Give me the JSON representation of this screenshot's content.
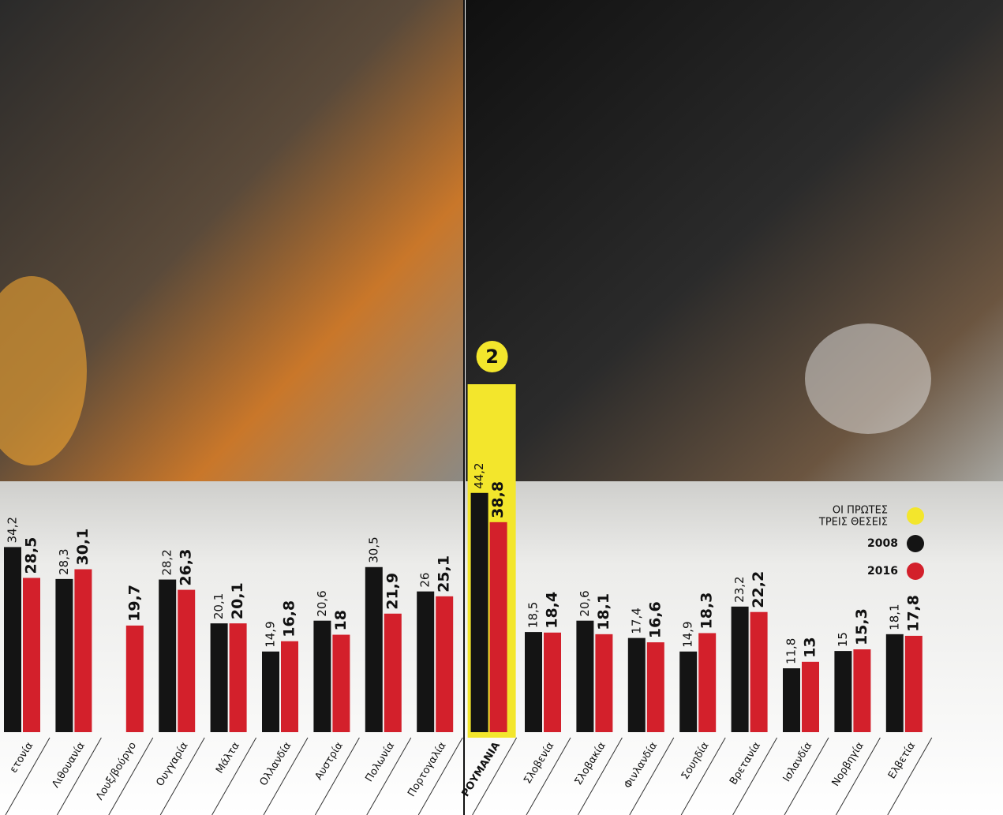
{
  "chart_data": {
    "type": "bar",
    "categories": [
      "ετονία",
      "Λιθουανία",
      "Λουξ/βούργο",
      "Ουγγαρία",
      "Μάλτα",
      "Ολλανδία",
      "Αυστρία",
      "Πολωνία",
      "Πορτογαλία",
      "ΡΟΥΜΑΝΙΑ",
      "Σλοβενία",
      "Σλοβακία",
      "Φινλανδία",
      "Σουηδία",
      "Βρετανία",
      "Ισλανδία",
      "Νορβηγία",
      "Ελβετία"
    ],
    "series": [
      {
        "name": "2008",
        "color": "#141414",
        "values": [
          34.2,
          28.3,
          null,
          28.2,
          20.1,
          14.9,
          20.6,
          30.5,
          26,
          44.2,
          18.5,
          20.6,
          17.4,
          14.9,
          23.2,
          11.8,
          15,
          18.1
        ],
        "value_labels": [
          "34,2",
          "28,3",
          null,
          "28,2",
          "20,1",
          "14,9",
          "20,6",
          "30,5",
          "26",
          "44,2",
          "18,5",
          "20,6",
          "17,4",
          "14,9",
          "23,2",
          "11,8",
          "15",
          "18,1"
        ]
      },
      {
        "name": "2016",
        "color": "#d3202b",
        "values": [
          28.5,
          30.1,
          19.7,
          26.3,
          20.1,
          16.8,
          18,
          21.9,
          25.1,
          38.8,
          18.4,
          18.1,
          16.6,
          18.3,
          22.2,
          13,
          15.3,
          17.8
        ],
        "value_labels": [
          "28,5",
          "30,1",
          "19,7",
          "26,3",
          "20,1",
          "16,8",
          "18",
          "21,9",
          "25,1",
          "38,8",
          "18,4",
          "18,1",
          "16,6",
          "18,3",
          "22,2",
          "13",
          "15,3",
          "17,8"
        ]
      }
    ],
    "highlight": {
      "category": "ΡΟΥΜΑΝΙΑ",
      "rank": "2",
      "color": "#f3e62c",
      "label_color": "#d3202b",
      "legend_lines": [
        "ΟΙ ΠΡΩΤΕΣ",
        "ΤΡΕΙΣ ΘΕΣΕΙΣ"
      ]
    }
  }
}
